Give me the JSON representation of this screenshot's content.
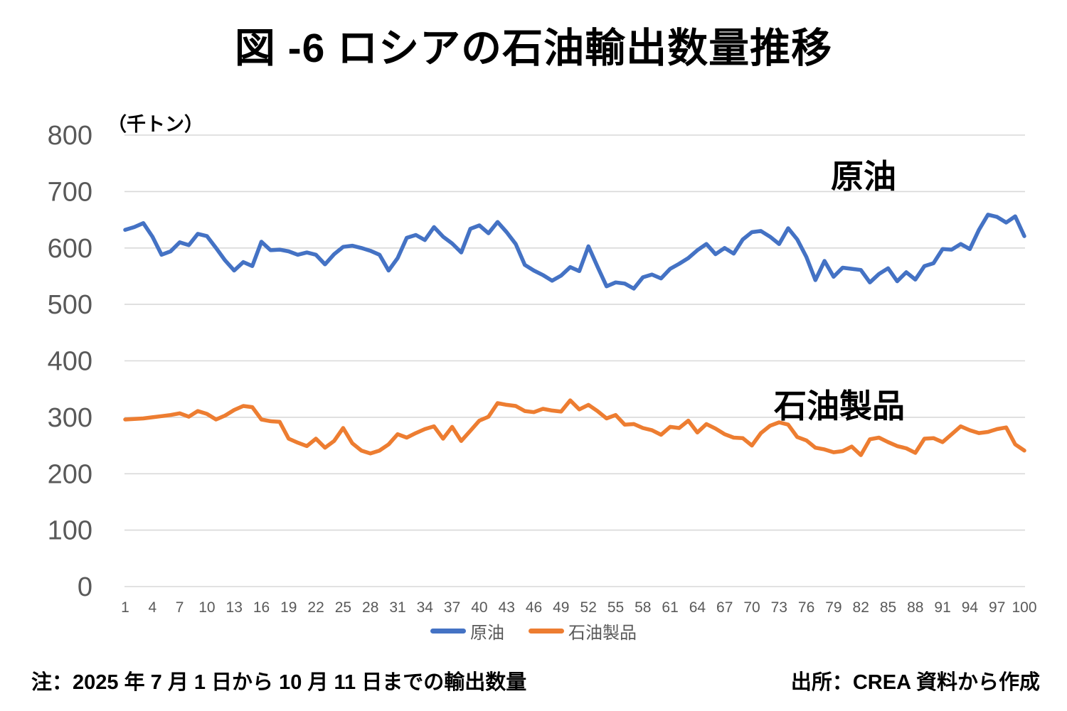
{
  "title": "図 -6 ロシアの石油輸出数量推移",
  "annotations": {
    "crude_label": "原油",
    "products_label": "石油製品"
  },
  "notes": {
    "note": "注：2025 年 7 月 1 日から 10 月 11 日までの輸出数量",
    "source": "出所：CREA 資料から作成"
  },
  "colors": {
    "crude_line": "#4472C4",
    "products_line": "#ED7D31",
    "gridline": "#D9D9D9",
    "axis_text": "#595959",
    "title_text": "#000000"
  },
  "chart_data": {
    "type": "line",
    "title": "図 -6 ロシアの石油輸出数量推移",
    "ylabel": "（千トン）",
    "xlabel": "",
    "ylim": [
      0,
      800
    ],
    "y_ticks": [
      800,
      700,
      600,
      500,
      400,
      300,
      200,
      100,
      0
    ],
    "x_tick_step": 3,
    "grid": true,
    "legend_position": "bottom-center",
    "x": [
      1,
      2,
      3,
      4,
      5,
      6,
      7,
      8,
      9,
      10,
      11,
      12,
      13,
      14,
      15,
      16,
      17,
      18,
      19,
      20,
      21,
      22,
      23,
      24,
      25,
      26,
      27,
      28,
      29,
      30,
      31,
      32,
      33,
      34,
      35,
      36,
      37,
      38,
      39,
      40,
      41,
      42,
      43,
      44,
      45,
      46,
      47,
      48,
      49,
      50,
      51,
      52,
      53,
      54,
      55,
      56,
      57,
      58,
      59,
      60,
      61,
      62,
      63,
      64,
      65,
      66,
      67,
      68,
      69,
      70,
      71,
      72,
      73,
      74,
      75,
      76,
      77,
      78,
      79,
      80,
      81,
      82,
      83,
      84,
      85,
      86,
      87,
      88,
      89,
      90,
      91,
      92,
      93,
      94,
      95,
      96,
      97,
      98,
      99,
      100
    ],
    "series": [
      {
        "name": "原油",
        "color": "#4472C4",
        "values": [
          632,
          637,
          644,
          620,
          588,
          594,
          610,
          605,
          625,
          621,
          600,
          578,
          560,
          575,
          568,
          611,
          596,
          597,
          594,
          588,
          592,
          588,
          571,
          589,
          602,
          604,
          600,
          595,
          588,
          560,
          582,
          618,
          623,
          614,
          637,
          620,
          608,
          592,
          634,
          640,
          626,
          646,
          628,
          607,
          570,
          560,
          552,
          542,
          551,
          566,
          559,
          603,
          567,
          532,
          539,
          537,
          528,
          548,
          553,
          546,
          563,
          572,
          582,
          596,
          607,
          589,
          600,
          590,
          615,
          628,
          630,
          620,
          607,
          635,
          615,
          584,
          543,
          577,
          549,
          565,
          563,
          561,
          539,
          554,
          564,
          541,
          557,
          544,
          568,
          573,
          598,
          597,
          607,
          598,
          632,
          659,
          655,
          645,
          656,
          621
        ]
      },
      {
        "name": "石油製品",
        "color": "#ED7D31",
        "values": [
          296,
          297,
          298,
          300,
          302,
          304,
          307,
          301,
          311,
          306,
          296,
          303,
          313,
          320,
          318,
          296,
          293,
          292,
          262,
          255,
          249,
          262,
          246,
          258,
          281,
          254,
          241,
          236,
          241,
          252,
          270,
          264,
          272,
          279,
          284,
          262,
          283,
          258,
          276,
          294,
          301,
          325,
          322,
          320,
          311,
          309,
          315,
          312,
          310,
          330,
          314,
          322,
          311,
          298,
          304,
          287,
          288,
          281,
          277,
          269,
          283,
          281,
          294,
          273,
          288,
          280,
          270,
          264,
          263,
          250,
          272,
          285,
          291,
          287,
          265,
          259,
          246,
          243,
          238,
          240,
          248,
          233,
          261,
          264,
          256,
          249,
          245,
          237,
          262,
          263,
          256,
          270,
          284,
          277,
          272,
          274,
          279,
          282,
          252,
          241
        ]
      }
    ]
  }
}
